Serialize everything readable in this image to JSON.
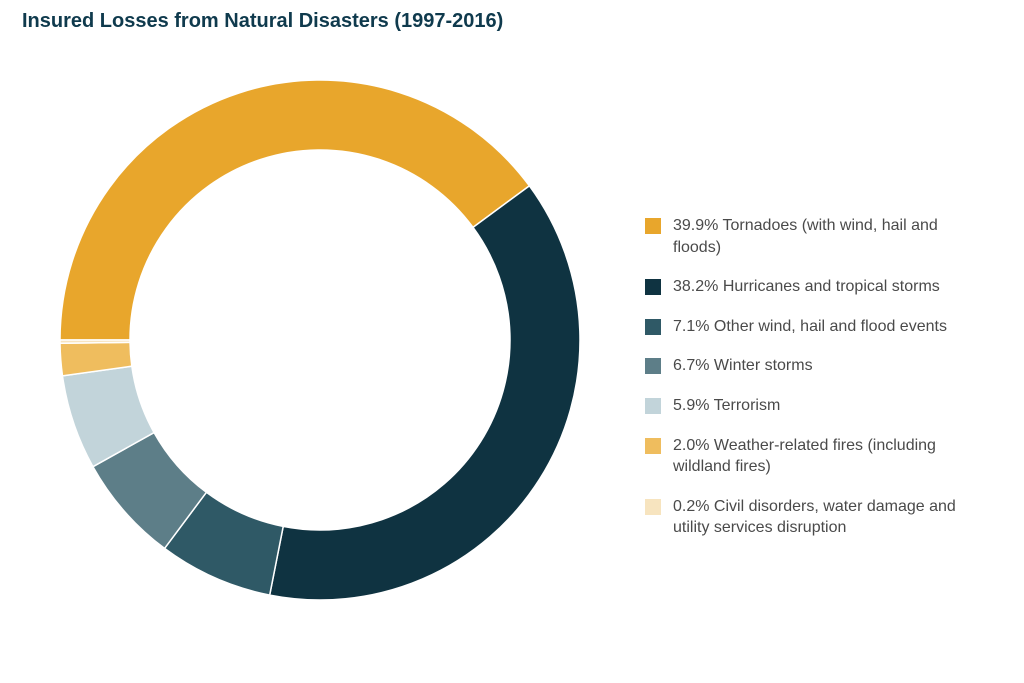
{
  "title": "Insured Losses from Natural Disasters (1997-2016)",
  "chart": {
    "type": "donut",
    "background_color": "#ffffff",
    "title_color": "#0f3a4d",
    "title_fontsize": 20,
    "title_fontweight": 700,
    "legend_text_color": "#4a4a4a",
    "legend_fontsize": 16,
    "outer_radius": 260,
    "inner_radius": 190,
    "start_angle_deg": 180,
    "direction": "clockwise",
    "slices": [
      {
        "label": "39.9% Tornadoes (with wind, hail and floods)",
        "value": 39.9,
        "color": "#e8a62c"
      },
      {
        "label": "38.2% Hurricanes and tropical storms",
        "value": 38.2,
        "color": "#0f3341"
      },
      {
        "label": "7.1% Other wind, hail and flood events",
        "value": 7.1,
        "color": "#2f5966"
      },
      {
        "label": "6.7% Winter storms",
        "value": 6.7,
        "color": "#5d7e88"
      },
      {
        "label": "5.9% Terrorism",
        "value": 5.9,
        "color": "#c2d4da"
      },
      {
        "label": "2.0% Weather-related fires (including wildland fires)",
        "value": 2.0,
        "color": "#efbd5e"
      },
      {
        "label": "0.2% Civil disorders, water damage and utility services disruption",
        "value": 0.2,
        "color": "#f7e4bf"
      }
    ]
  }
}
